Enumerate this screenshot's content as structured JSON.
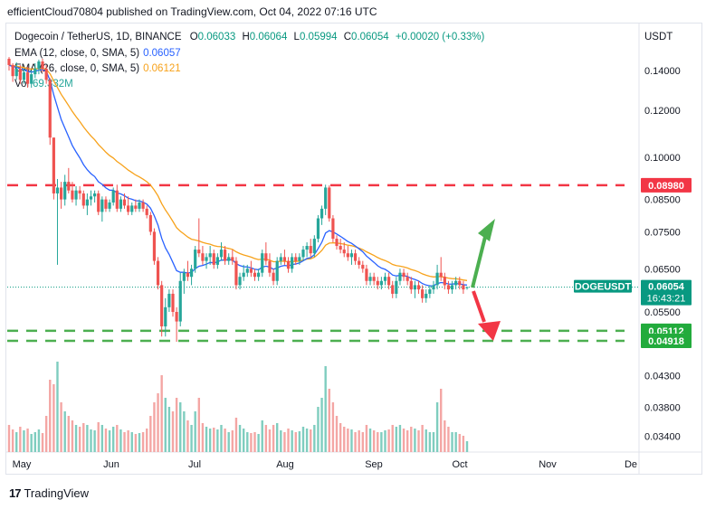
{
  "caption": "efficientCloud70804 published on TradingView.com, Oct 04, 2022 07:16 UTC",
  "header": {
    "symbol": "Dogecoin / TetherUS, 1D, BINANCE",
    "o_label": "O",
    "o_value": "0.06033",
    "h_label": "H",
    "h_value": "0.06064",
    "l_label": "L",
    "l_value": "0.05994",
    "c_label": "C",
    "c_value": "0.06054",
    "change": "+0.00020 (+0.33%)",
    "currency": "USDT"
  },
  "indicators": [
    {
      "label": "EMA (12, close, 0, SMA, 5)",
      "value": "0.06057",
      "color": "#2962ff"
    },
    {
      "label": "EMA (26, close, 0, SMA, 5)",
      "value": "0.06121",
      "color": "#f7a21b"
    },
    {
      "label": "Vol",
      "value": "69.332M",
      "color": "#26a69a"
    }
  ],
  "footer": {
    "brand": "TradingView",
    "logo": "17"
  },
  "chart_data": {
    "type": "candlestick",
    "scale": "log",
    "y_axis_ticks": [
      "0.14000",
      "0.12000",
      "0.10000",
      "0.08500",
      "0.07500",
      "0.06500",
      "0.05500",
      "0.04300",
      "0.03800",
      "0.03400"
    ],
    "x_axis_ticks": [
      "May",
      "Jun",
      "Jul",
      "Aug",
      "Sep",
      "Oct",
      "Nov",
      "De"
    ],
    "price_labels": [
      {
        "text": "0.08980",
        "value": 0.0898,
        "color": "#f23645",
        "kind": "resistance"
      },
      {
        "text": "DOGEUSDT",
        "text2": "0.06054",
        "text3": "16:43:21",
        "value": 0.06054,
        "color": "#089981",
        "kind": "last"
      },
      {
        "text": "0.05112",
        "value": 0.05112,
        "color": "#22ab3c",
        "kind": "support"
      },
      {
        "text": "0.04918",
        "value": 0.04918,
        "color": "#22ab3c",
        "kind": "support"
      }
    ],
    "horizontal_lines": [
      {
        "value": 0.0898,
        "color": "#f23645",
        "style": "dashed"
      },
      {
        "value": 0.05112,
        "color": "#4caf50",
        "style": "dashed"
      },
      {
        "value": 0.04918,
        "color": "#4caf50",
        "style": "dashed"
      }
    ],
    "arrows": [
      {
        "direction": "up",
        "color": "#4caf50"
      },
      {
        "direction": "down",
        "color": "#f23645"
      }
    ],
    "candles": [
      [
        0.1465,
        0.1475,
        0.14,
        0.143
      ],
      [
        0.143,
        0.144,
        0.134,
        0.137
      ],
      [
        0.137,
        0.1445,
        0.135,
        0.141
      ],
      [
        0.141,
        0.143,
        0.133,
        0.135
      ],
      [
        0.135,
        0.141,
        0.133,
        0.139
      ],
      [
        0.139,
        0.142,
        0.131,
        0.133
      ],
      [
        0.133,
        0.14,
        0.131,
        0.138
      ],
      [
        0.138,
        0.144,
        0.136,
        0.141
      ],
      [
        0.141,
        0.146,
        0.138,
        0.145
      ],
      [
        0.145,
        0.1465,
        0.139,
        0.141
      ],
      [
        0.141,
        0.143,
        0.133,
        0.135
      ],
      [
        0.135,
        0.136,
        0.105,
        0.108
      ],
      [
        0.108,
        0.108,
        0.085,
        0.087
      ],
      [
        0.087,
        0.092,
        0.066,
        0.089
      ],
      [
        0.089,
        0.091,
        0.082,
        0.085
      ],
      [
        0.085,
        0.0935,
        0.083,
        0.091
      ],
      [
        0.091,
        0.096,
        0.087,
        0.088
      ],
      [
        0.088,
        0.091,
        0.084,
        0.085
      ],
      [
        0.085,
        0.0895,
        0.083,
        0.088
      ],
      [
        0.088,
        0.0895,
        0.085,
        0.087
      ],
      [
        0.087,
        0.088,
        0.082,
        0.083
      ],
      [
        0.083,
        0.087,
        0.08,
        0.085
      ],
      [
        0.085,
        0.088,
        0.083,
        0.086
      ],
      [
        0.086,
        0.088,
        0.084,
        0.087
      ],
      [
        0.087,
        0.088,
        0.08,
        0.081
      ],
      [
        0.081,
        0.086,
        0.078,
        0.085
      ],
      [
        0.085,
        0.086,
        0.081,
        0.082
      ],
      [
        0.082,
        0.085,
        0.081,
        0.084
      ],
      [
        0.084,
        0.089,
        0.083,
        0.088
      ],
      [
        0.088,
        0.09,
        0.081,
        0.082
      ],
      [
        0.082,
        0.086,
        0.081,
        0.085
      ],
      [
        0.085,
        0.087,
        0.082,
        0.083
      ],
      [
        0.083,
        0.086,
        0.08,
        0.081
      ],
      [
        0.081,
        0.084,
        0.08,
        0.083
      ],
      [
        0.083,
        0.085,
        0.081,
        0.082
      ],
      [
        0.082,
        0.085,
        0.081,
        0.084
      ],
      [
        0.084,
        0.085,
        0.081,
        0.082
      ],
      [
        0.082,
        0.083,
        0.079,
        0.08
      ],
      [
        0.08,
        0.081,
        0.074,
        0.075
      ],
      [
        0.075,
        0.076,
        0.066,
        0.067
      ],
      [
        0.067,
        0.068,
        0.06,
        0.061
      ],
      [
        0.061,
        0.062,
        0.05,
        0.052
      ],
      [
        0.052,
        0.058,
        0.05,
        0.056
      ],
      [
        0.056,
        0.06,
        0.055,
        0.059
      ],
      [
        0.059,
        0.06,
        0.054,
        0.055
      ],
      [
        0.055,
        0.056,
        0.049,
        0.053
      ],
      [
        0.053,
        0.064,
        0.052,
        0.062
      ],
      [
        0.062,
        0.065,
        0.059,
        0.064
      ],
      [
        0.064,
        0.067,
        0.062,
        0.063
      ],
      [
        0.063,
        0.066,
        0.061,
        0.065
      ],
      [
        0.065,
        0.071,
        0.064,
        0.07
      ],
      [
        0.07,
        0.079,
        0.068,
        0.069
      ],
      [
        0.069,
        0.071,
        0.066,
        0.067
      ],
      [
        0.067,
        0.069,
        0.065,
        0.068
      ],
      [
        0.068,
        0.071,
        0.066,
        0.069
      ],
      [
        0.069,
        0.07,
        0.065,
        0.066
      ],
      [
        0.066,
        0.069,
        0.065,
        0.068
      ],
      [
        0.068,
        0.072,
        0.067,
        0.07
      ],
      [
        0.07,
        0.071,
        0.066,
        0.067
      ],
      [
        0.067,
        0.069,
        0.066,
        0.068
      ],
      [
        0.068,
        0.07,
        0.066,
        0.067
      ],
      [
        0.067,
        0.068,
        0.06,
        0.061
      ],
      [
        0.061,
        0.064,
        0.06,
        0.063
      ],
      [
        0.063,
        0.066,
        0.062,
        0.064
      ],
      [
        0.064,
        0.066,
        0.063,
        0.065
      ],
      [
        0.065,
        0.067,
        0.063,
        0.064
      ],
      [
        0.064,
        0.065,
        0.062,
        0.063
      ],
      [
        0.063,
        0.065,
        0.062,
        0.064
      ],
      [
        0.064,
        0.07,
        0.063,
        0.069
      ],
      [
        0.069,
        0.072,
        0.066,
        0.067
      ],
      [
        0.067,
        0.069,
        0.063,
        0.064
      ],
      [
        0.064,
        0.065,
        0.061,
        0.062
      ],
      [
        0.062,
        0.068,
        0.061,
        0.067
      ],
      [
        0.067,
        0.069,
        0.066,
        0.068
      ],
      [
        0.068,
        0.07,
        0.066,
        0.067
      ],
      [
        0.067,
        0.068,
        0.064,
        0.065
      ],
      [
        0.065,
        0.069,
        0.064,
        0.068
      ],
      [
        0.068,
        0.069,
        0.066,
        0.067
      ],
      [
        0.067,
        0.069,
        0.066,
        0.068
      ],
      [
        0.068,
        0.071,
        0.067,
        0.07
      ],
      [
        0.07,
        0.072,
        0.068,
        0.071
      ],
      [
        0.071,
        0.073,
        0.068,
        0.069
      ],
      [
        0.069,
        0.074,
        0.068,
        0.073
      ],
      [
        0.073,
        0.08,
        0.072,
        0.079
      ],
      [
        0.079,
        0.083,
        0.077,
        0.082
      ],
      [
        0.082,
        0.09,
        0.08,
        0.089
      ],
      [
        0.089,
        0.0898,
        0.078,
        0.079
      ],
      [
        0.079,
        0.08,
        0.072,
        0.073
      ],
      [
        0.073,
        0.074,
        0.07,
        0.071
      ],
      [
        0.071,
        0.073,
        0.069,
        0.07
      ],
      [
        0.07,
        0.072,
        0.068,
        0.069
      ],
      [
        0.069,
        0.071,
        0.067,
        0.068
      ],
      [
        0.068,
        0.07,
        0.066,
        0.069
      ],
      [
        0.069,
        0.07,
        0.066,
        0.067
      ],
      [
        0.067,
        0.068,
        0.065,
        0.066
      ],
      [
        0.066,
        0.067,
        0.064,
        0.065
      ],
      [
        0.065,
        0.066,
        0.061,
        0.062
      ],
      [
        0.062,
        0.064,
        0.061,
        0.063
      ],
      [
        0.063,
        0.064,
        0.061,
        0.062
      ],
      [
        0.062,
        0.063,
        0.06,
        0.061
      ],
      [
        0.061,
        0.063,
        0.06,
        0.062
      ],
      [
        0.062,
        0.064,
        0.061,
        0.063
      ],
      [
        0.063,
        0.064,
        0.06,
        0.061
      ],
      [
        0.061,
        0.062,
        0.058,
        0.059
      ],
      [
        0.059,
        0.063,
        0.058,
        0.062
      ],
      [
        0.062,
        0.065,
        0.061,
        0.064
      ],
      [
        0.064,
        0.065,
        0.062,
        0.063
      ],
      [
        0.063,
        0.064,
        0.061,
        0.062
      ],
      [
        0.062,
        0.063,
        0.059,
        0.06
      ],
      [
        0.06,
        0.062,
        0.058,
        0.061
      ],
      [
        0.061,
        0.062,
        0.059,
        0.06
      ],
      [
        0.06,
        0.061,
        0.057,
        0.058
      ],
      [
        0.058,
        0.06,
        0.057,
        0.059
      ],
      [
        0.059,
        0.061,
        0.058,
        0.06
      ],
      [
        0.06,
        0.062,
        0.059,
        0.061
      ],
      [
        0.061,
        0.066,
        0.06,
        0.064
      ],
      [
        0.064,
        0.068,
        0.062,
        0.063
      ],
      [
        0.063,
        0.064,
        0.06,
        0.061
      ],
      [
        0.061,
        0.062,
        0.059,
        0.06
      ],
      [
        0.06,
        0.062,
        0.059,
        0.061
      ],
      [
        0.061,
        0.063,
        0.06,
        0.062
      ],
      [
        0.062,
        0.063,
        0.06,
        0.061
      ],
      [
        0.061,
        0.062,
        0.059,
        0.06
      ],
      [
        0.06033,
        0.06064,
        0.05994,
        0.06054
      ]
    ],
    "volume_relative": [
      0.3,
      0.25,
      0.22,
      0.28,
      0.24,
      0.26,
      0.2,
      0.22,
      0.25,
      0.21,
      0.4,
      0.8,
      0.75,
      1.0,
      0.55,
      0.45,
      0.4,
      0.35,
      0.3,
      0.28,
      0.32,
      0.3,
      0.25,
      0.24,
      0.33,
      0.3,
      0.26,
      0.24,
      0.28,
      0.3,
      0.25,
      0.22,
      0.24,
      0.22,
      0.2,
      0.21,
      0.22,
      0.26,
      0.4,
      0.55,
      0.65,
      0.85,
      0.6,
      0.5,
      0.45,
      0.6,
      0.55,
      0.45,
      0.35,
      0.3,
      0.45,
      0.6,
      0.32,
      0.28,
      0.26,
      0.27,
      0.25,
      0.3,
      0.26,
      0.22,
      0.24,
      0.38,
      0.3,
      0.26,
      0.22,
      0.21,
      0.22,
      0.2,
      0.35,
      0.3,
      0.25,
      0.3,
      0.32,
      0.24,
      0.22,
      0.26,
      0.24,
      0.22,
      0.23,
      0.28,
      0.26,
      0.25,
      0.3,
      0.5,
      0.6,
      0.95,
      0.7,
      0.55,
      0.4,
      0.32,
      0.28,
      0.26,
      0.25,
      0.22,
      0.24,
      0.22,
      0.3,
      0.26,
      0.24,
      0.22,
      0.22,
      0.24,
      0.25,
      0.3,
      0.28,
      0.3,
      0.26,
      0.24,
      0.28,
      0.26,
      0.24,
      0.3,
      0.25,
      0.22,
      0.22,
      0.55,
      0.7,
      0.35,
      0.28,
      0.22,
      0.22,
      0.2,
      0.18,
      0.12
    ]
  }
}
